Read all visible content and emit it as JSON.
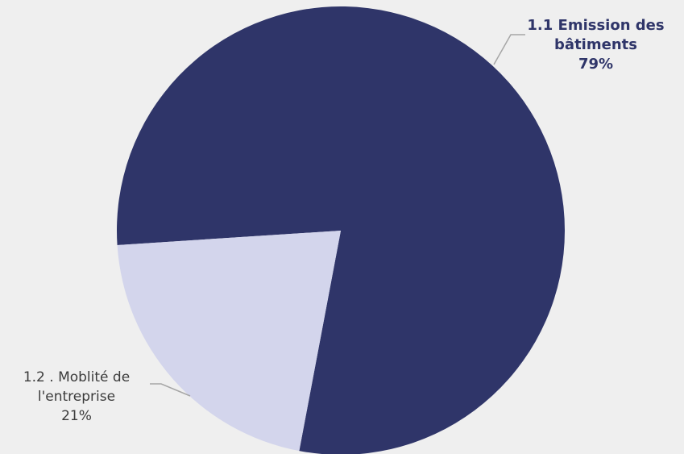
{
  "chart_data": {
    "type": "pie",
    "slices": [
      {
        "label_line1": "1.1 Emission des",
        "label_line2": "bâtiments",
        "percent_label": "79%",
        "value": 79,
        "color": "#2f3569"
      },
      {
        "label_line1": "1.2 . Moblité de",
        "label_line2": "l'entreprise",
        "percent_label": "21%",
        "value": 21,
        "color": "#d3d5ec"
      }
    ]
  }
}
